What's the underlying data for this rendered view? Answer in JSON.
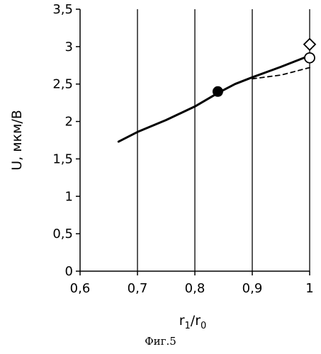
{
  "chart_data": {
    "type": "line",
    "xlabel_base": "r",
    "xlabel_sub1": "1",
    "xlabel_sep": "/r",
    "xlabel_sub2": "0",
    "ylabel": "U, мкм/В",
    "xlim": [
      0.6,
      1.0
    ],
    "ylim": [
      0,
      3.5
    ],
    "x_ticks": [
      0.6,
      0.7,
      0.8,
      0.9,
      1.0
    ],
    "x_tick_labels": [
      "0,6",
      "0,7",
      "0,8",
      "0,9",
      "1"
    ],
    "y_ticks": [
      0,
      0.5,
      1.0,
      1.5,
      2.0,
      2.5,
      3.0,
      3.5
    ],
    "y_tick_labels": [
      "0",
      "0,5",
      "1",
      "1,5",
      "2",
      "2,5",
      "3",
      "3,5"
    ],
    "grid": "vertical",
    "series": [
      {
        "style": "solid",
        "x": [
          0.667,
          0.7,
          0.75,
          0.8,
          0.84,
          0.87,
          0.9,
          0.95,
          1.0
        ],
        "y": [
          1.73,
          1.86,
          2.02,
          2.2,
          2.38,
          2.5,
          2.59,
          2.73,
          2.88
        ]
      },
      {
        "style": "dashed",
        "x": [
          0.9,
          0.95,
          1.0
        ],
        "y": [
          2.57,
          2.62,
          2.72
        ]
      }
    ],
    "markers": [
      {
        "shape": "filled-circle",
        "x": 0.84,
        "y": 2.4
      },
      {
        "shape": "open-circle",
        "x": 1.0,
        "y": 2.85
      },
      {
        "shape": "open-diamond",
        "x": 1.0,
        "y": 3.03
      }
    ]
  },
  "caption": "Фиг.5"
}
